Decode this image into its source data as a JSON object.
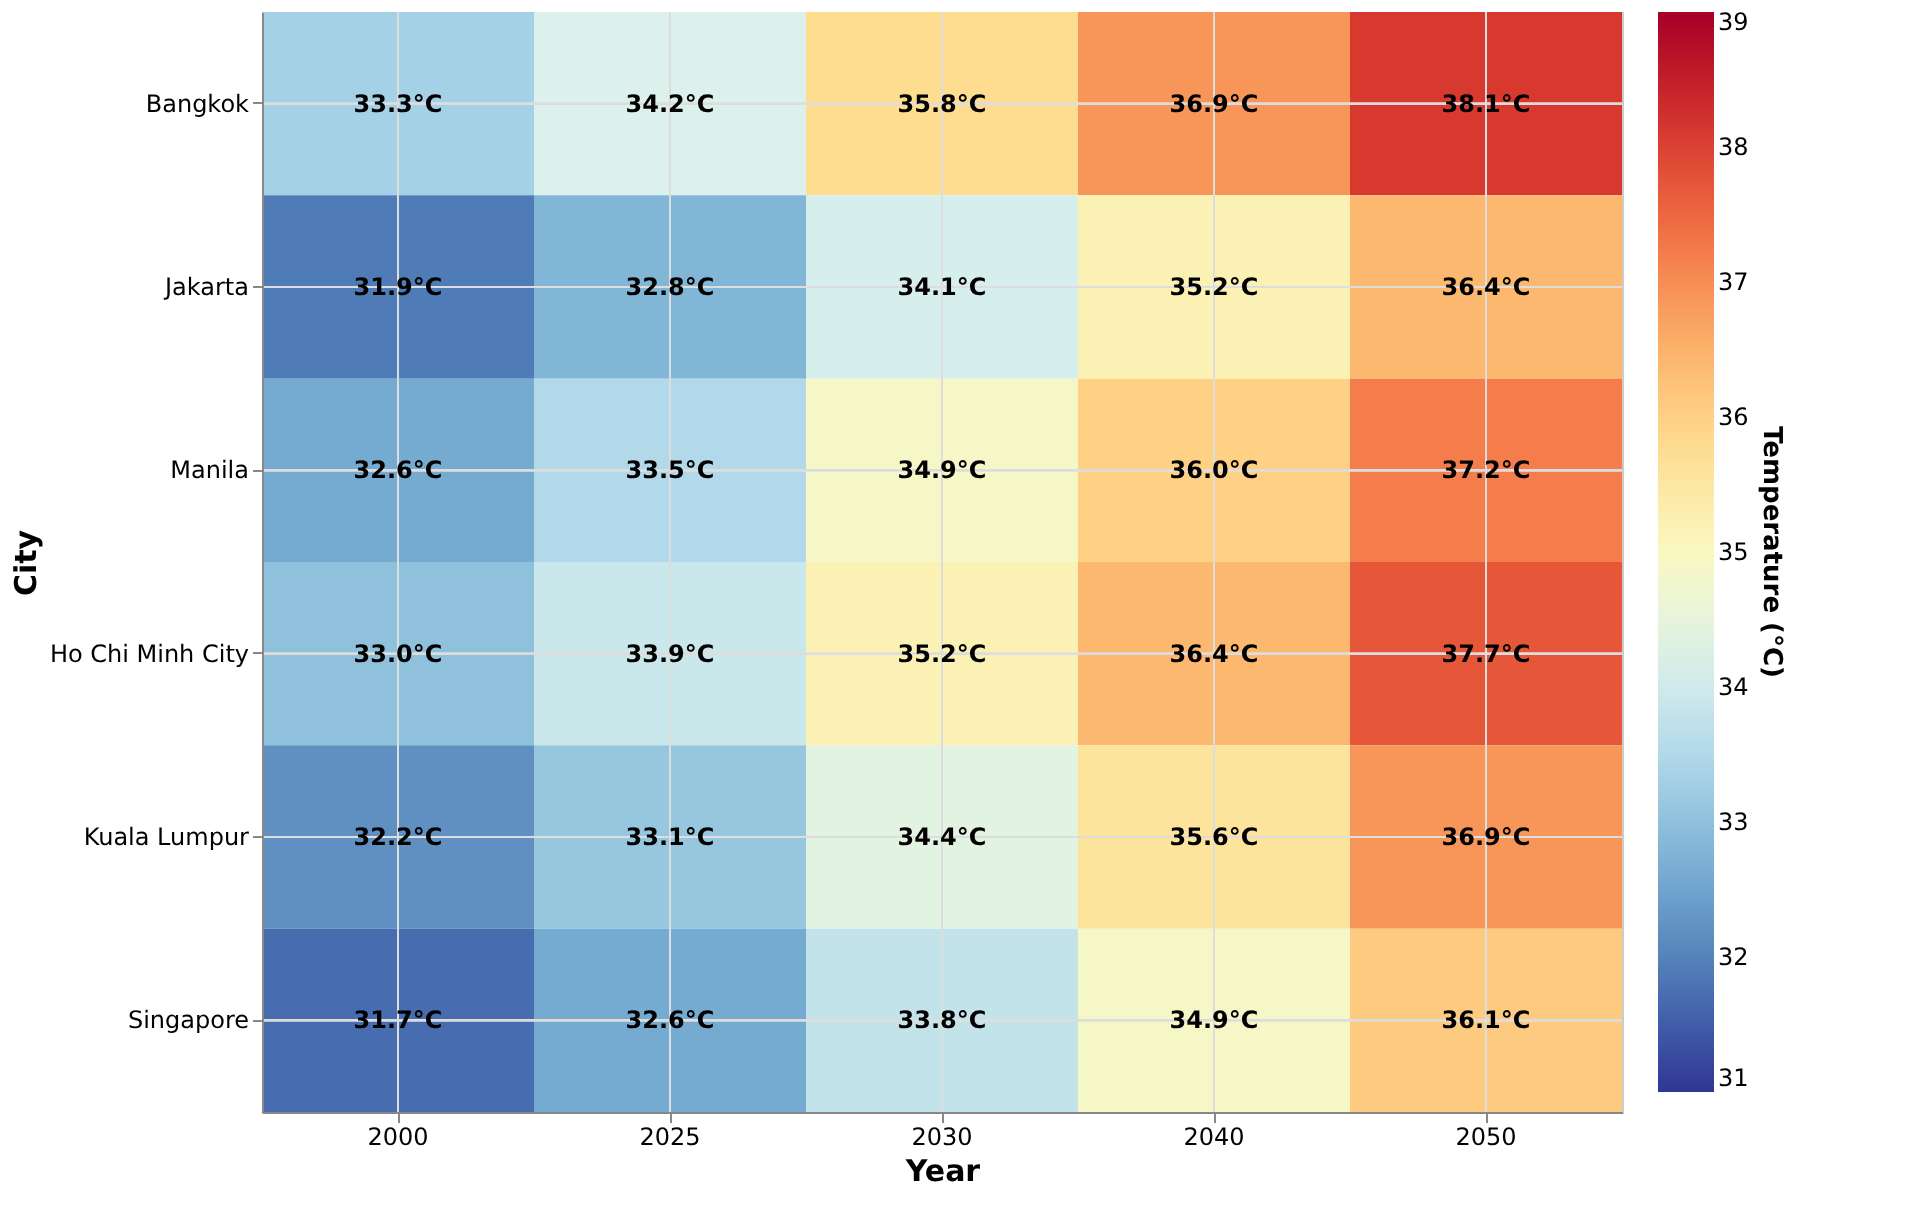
{
  "chart_data": {
    "type": "heatmap",
    "xlabel": "Year",
    "ylabel": "City",
    "clabel": "Temperature (°C)",
    "categories": [
      "2000",
      "2025",
      "2030",
      "2040",
      "2050"
    ],
    "y_categories": [
      "Bangkok",
      "Jakarta",
      "Manila",
      "Ho Chi Minh City",
      "Kuala Lumpur",
      "Singapore"
    ],
    "cells": [
      [
        33.3,
        34.2,
        35.8,
        36.9,
        38.1
      ],
      [
        31.9,
        32.8,
        34.1,
        35.2,
        36.4
      ],
      [
        32.6,
        33.5,
        34.9,
        36.0,
        37.2
      ],
      [
        33.0,
        33.9,
        35.2,
        36.4,
        37.7
      ],
      [
        32.2,
        33.1,
        34.4,
        35.6,
        36.9
      ],
      [
        31.7,
        32.6,
        33.8,
        34.9,
        36.1
      ]
    ],
    "cell_labels": [
      [
        "33.3°C",
        "34.2°C",
        "35.8°C",
        "36.9°C",
        "38.1°C"
      ],
      [
        "31.9°C",
        "32.8°C",
        "34.1°C",
        "35.2°C",
        "36.4°C"
      ],
      [
        "32.6°C",
        "33.5°C",
        "34.9°C",
        "36.0°C",
        "37.2°C"
      ],
      [
        "33.0°C",
        "33.9°C",
        "35.2°C",
        "36.4°C",
        "37.7°C"
      ],
      [
        "32.2°C",
        "33.1°C",
        "34.4°C",
        "35.6°C",
        "36.9°C"
      ],
      [
        "31.7°C",
        "32.6°C",
        "33.8°C",
        "34.9°C",
        "36.1°C"
      ]
    ],
    "clim": [
      31,
      39
    ],
    "cticks": [
      31,
      32,
      33,
      34,
      35,
      36,
      37,
      38,
      39
    ],
    "grid": true
  }
}
